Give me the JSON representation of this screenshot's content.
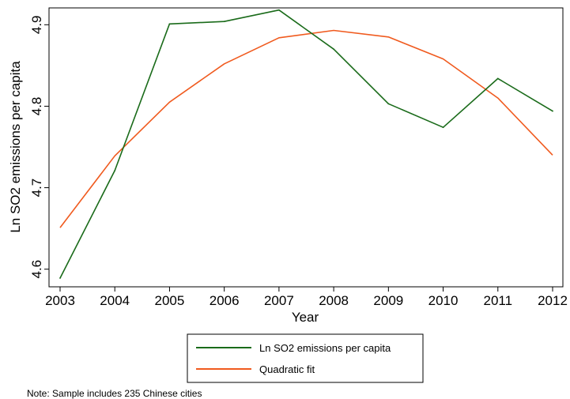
{
  "chart_data": {
    "type": "line",
    "title": "",
    "xlabel": "Year",
    "ylabel": "Ln SO2 emissions per capita",
    "x": [
      2003,
      2004,
      2005,
      2006,
      2007,
      2008,
      2009,
      2010,
      2011,
      2012
    ],
    "x_ticks": [
      "2003",
      "2004",
      "2005",
      "2006",
      "2007",
      "2008",
      "2009",
      "2010",
      "2011",
      "2012"
    ],
    "y_ticks": [
      "4.6",
      "4.7",
      "4.8",
      "4.9"
    ],
    "xlim": [
      2003,
      2012
    ],
    "ylim": [
      4.58,
      4.93
    ],
    "grid": false,
    "legend_position": "bottom",
    "series": [
      {
        "name": "Ln SO2 emissions per capita",
        "color": "#1a6b1a",
        "values": [
          4.589,
          4.721,
          4.901,
          4.904,
          4.918,
          4.87,
          4.803,
          4.774,
          4.834,
          4.794
        ]
      },
      {
        "name": "Quadratic fit",
        "color": "#f05a1e",
        "values": [
          4.651,
          4.739,
          4.805,
          4.852,
          4.884,
          4.893,
          4.885,
          4.858,
          4.81,
          4.74
        ]
      }
    ],
    "note": "Note: Sample includes 235 Chinese cities"
  }
}
